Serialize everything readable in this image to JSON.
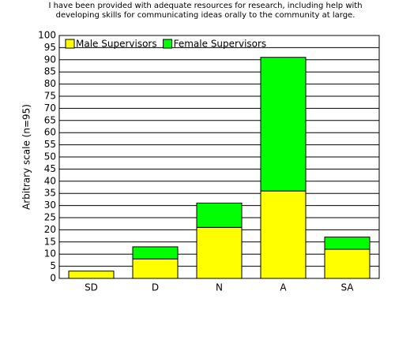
{
  "chart_data": {
    "type": "stacked_bar",
    "title": "I have been provided with adequate resources for research, including help with developing skills for communicating ideas orally to the community at large.",
    "ylabel": "Arbitrary scale (n=95)",
    "categories": [
      "SD",
      "D",
      "N",
      "A",
      "SA"
    ],
    "series": [
      {
        "name": "Male Supervisors",
        "color": "#ffff00",
        "values": [
          3,
          8,
          21,
          36,
          12
        ]
      },
      {
        "name": "Female Supervisors",
        "color": "#00ff00",
        "values": [
          0,
          5,
          10,
          55,
          5
        ]
      }
    ],
    "ylim": [
      0,
      100
    ],
    "yticks": [
      0,
      5,
      10,
      15,
      20,
      25,
      30,
      35,
      40,
      45,
      50,
      55,
      60,
      65,
      70,
      75,
      80,
      85,
      90,
      95,
      100
    ],
    "grid": true,
    "legend": "top-left"
  }
}
